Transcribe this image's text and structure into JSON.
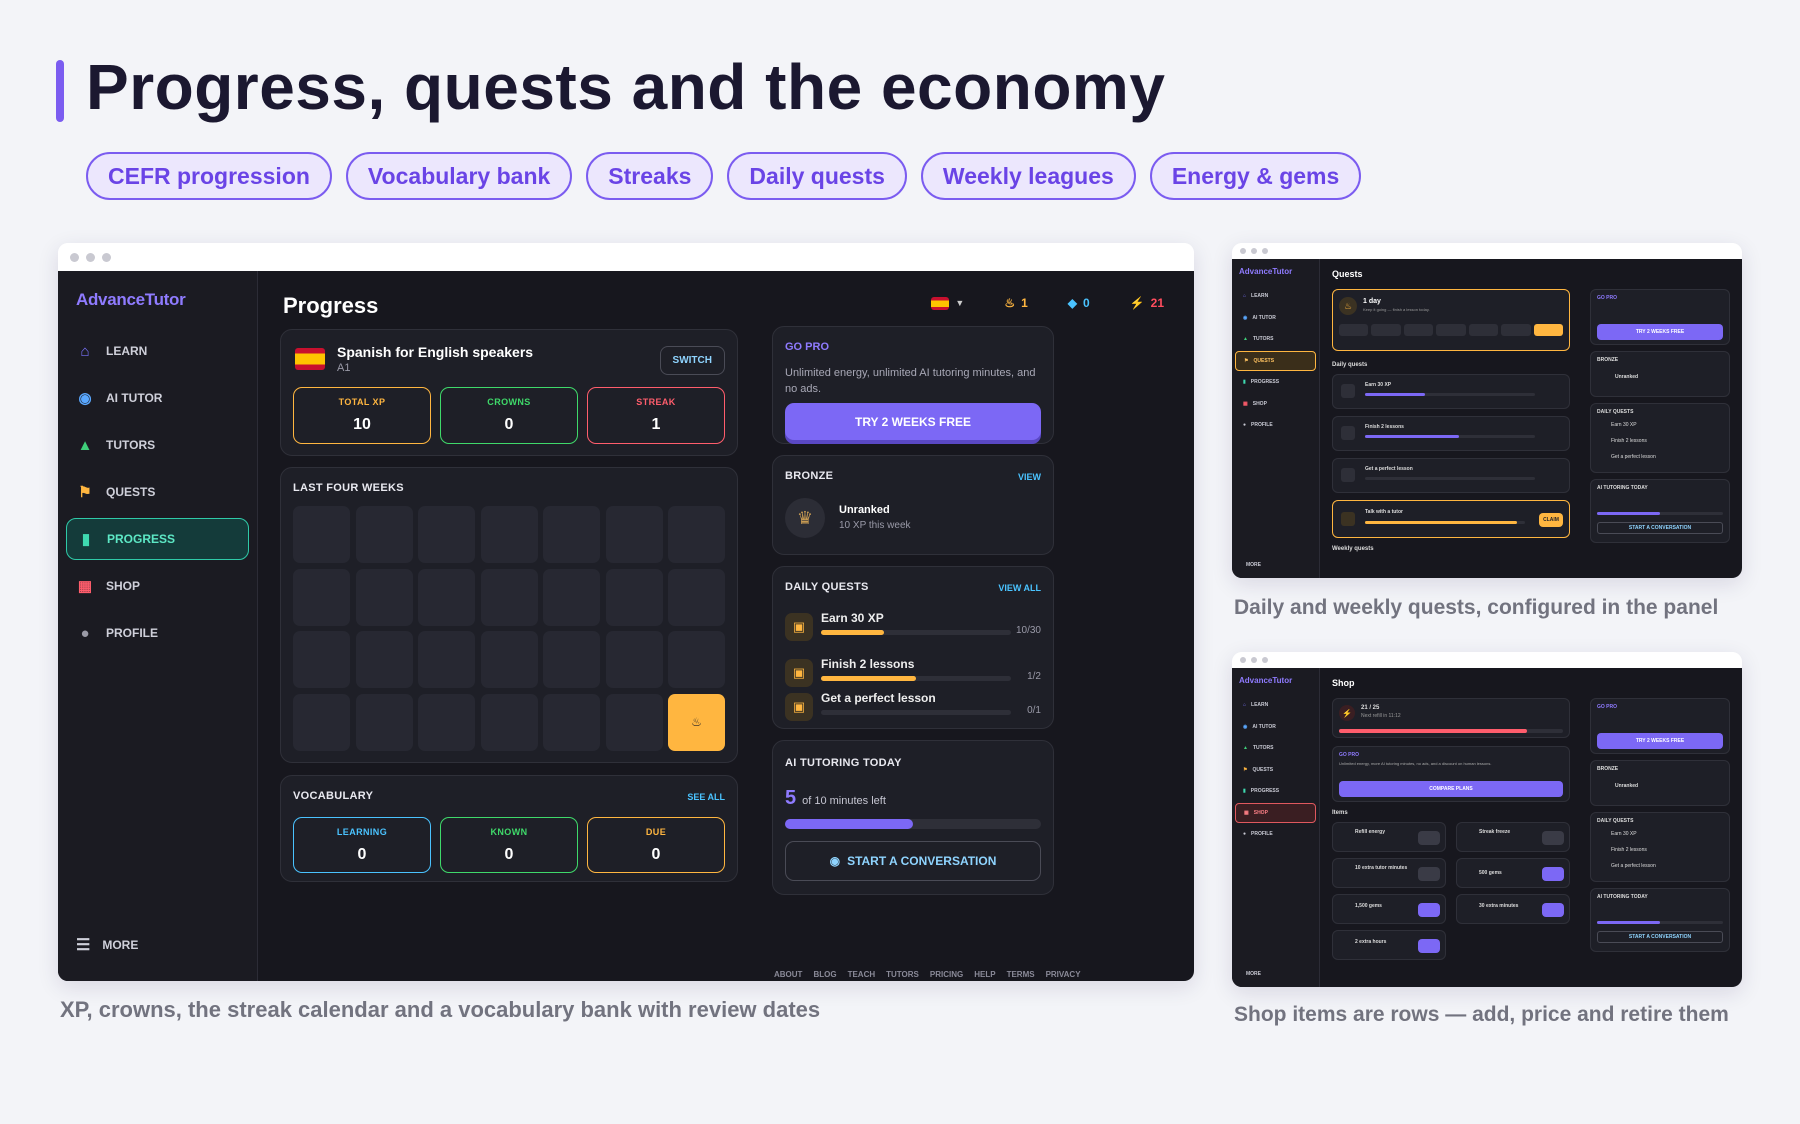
{
  "heading": "Progress, quests and the economy",
  "chips": [
    "CEFR progression",
    "Vocabulary bank",
    "Streaks",
    "Daily quests",
    "Weekly leagues",
    "Energy & gems"
  ],
  "main": {
    "logo": "AdvanceTutor",
    "nav": [
      "LEARN",
      "AI TUTOR",
      "TUTORS",
      "QUESTS",
      "PROGRESS",
      "SHOP",
      "PROFILE"
    ],
    "more": "MORE",
    "page_title": "Progress",
    "header_stats": {
      "streak": "1",
      "gems": "0",
      "energy": "21"
    },
    "course": {
      "name": "Spanish for English speakers",
      "level": "A1",
      "switch": "SWITCH"
    },
    "stats": [
      {
        "label": "TOTAL XP",
        "value": "10"
      },
      {
        "label": "CROWNS",
        "value": "0"
      },
      {
        "label": "STREAK",
        "value": "1"
      }
    ],
    "calendar_title": "LAST FOUR WEEKS",
    "vocab": {
      "title": "VOCABULARY",
      "see_all": "SEE ALL",
      "boxes": [
        {
          "label": "LEARNING",
          "value": "0"
        },
        {
          "label": "KNOWN",
          "value": "0"
        },
        {
          "label": "DUE",
          "value": "0"
        }
      ]
    },
    "gopro": {
      "title": "GO PRO",
      "text": "Unlimited energy, unlimited AI tutoring minutes, and no ads.",
      "button": "TRY 2 WEEKS FREE"
    },
    "league": {
      "title": "BRONZE",
      "view": "VIEW",
      "rank": "Unranked",
      "xp": "10 XP this week"
    },
    "quests": {
      "title": "DAILY QUESTS",
      "view_all": "VIEW ALL",
      "items": [
        {
          "name": "Earn 30 XP",
          "progress": "10/30",
          "fraction": 0.33
        },
        {
          "name": "Finish 2 lessons",
          "progress": "1/2",
          "fraction": 0.5
        },
        {
          "name": "Get a perfect lesson",
          "progress": "0/1",
          "fraction": 0
        }
      ]
    },
    "tutoring": {
      "title": "AI TUTORING TODAY",
      "minutes": "5",
      "of": "of 10 minutes left",
      "fraction": 0.5,
      "button": "START A CONVERSATION"
    },
    "footer": [
      "ABOUT",
      "BLOG",
      "TEACH",
      "TUTORS",
      "PRICING",
      "HELP",
      "TERMS",
      "PRIVACY"
    ]
  },
  "captions": {
    "main": "XP, crowns, the streak calendar and a vocabulary bank with review dates",
    "quests": "Daily and weekly quests, configured in the panel",
    "shop": "Shop items are rows — add, price and retire them"
  },
  "quests_shot": {
    "title": "Quests",
    "streak_title": "1 day",
    "streak_sub": "Keep it going — finish a lesson today.",
    "daily_label": "Daily quests",
    "weekly_label": "Weekly quests",
    "items": [
      "Earn 30 XP",
      "Finish 2 lessons",
      "Get a perfect lesson",
      "Talk with a tutor"
    ],
    "claim": "CLAIM"
  },
  "shop_shot": {
    "title": "Shop",
    "energy": "21 / 25",
    "refill": "Next refill in 11:12",
    "pro_text": "Unlimited energy, more AI tutoring minutes, no ads, and a discount on human lessons.",
    "compare": "COMPARE PLANS",
    "items_label": "Items",
    "items": [
      "Refill energy",
      "Streak freeze",
      "10 extra tutor minutes",
      "500 gems",
      "1,500 gems",
      "30 extra minutes",
      "2 extra hours"
    ]
  }
}
